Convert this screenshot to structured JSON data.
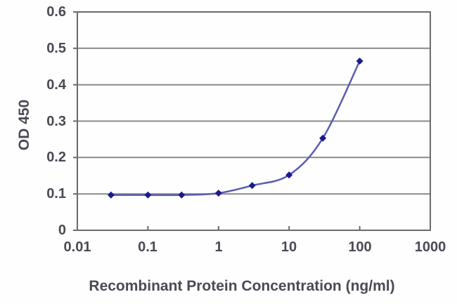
{
  "chart_data": {
    "type": "line",
    "title": "",
    "xlabel": "Recombinant Protein Concentration (ng/ml)",
    "ylabel": "OD 450",
    "x_scale": "log",
    "xlim": [
      0.01,
      1000
    ],
    "ylim": [
      0,
      0.6
    ],
    "x": [
      0.03,
      0.1,
      0.3,
      1,
      3,
      10,
      30,
      100
    ],
    "y": [
      0.097,
      0.097,
      0.097,
      0.102,
      0.123,
      0.152,
      0.253,
      0.465
    ],
    "x_ticks": [
      {
        "v": 0.01,
        "label": "0.01"
      },
      {
        "v": 0.1,
        "label": "0.1"
      },
      {
        "v": 1,
        "label": "1"
      },
      {
        "v": 10,
        "label": "10"
      },
      {
        "v": 100,
        "label": "100"
      },
      {
        "v": 1000,
        "label": "1000"
      }
    ],
    "y_ticks": [
      {
        "v": 0.0,
        "label": "0"
      },
      {
        "v": 0.1,
        "label": "0.1"
      },
      {
        "v": 0.2,
        "label": "0.2"
      },
      {
        "v": 0.3,
        "label": "0.3"
      },
      {
        "v": 0.4,
        "label": "0.4"
      },
      {
        "v": 0.5,
        "label": "0.5"
      },
      {
        "v": 0.6,
        "label": "0.6"
      }
    ],
    "grid": "horizontal",
    "legend": "none",
    "marker_shape": "diamond",
    "colors": {
      "line": "#5b5bb0",
      "marker": "#1a1a8e",
      "grid": "#8a8a8a",
      "axis": "#6a6a6a",
      "text": "#4a4a55",
      "background": "#fefefe"
    }
  }
}
